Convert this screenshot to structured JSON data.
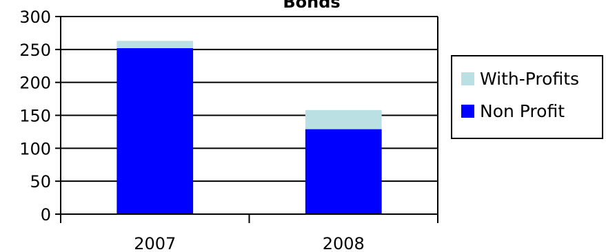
{
  "chart_data": {
    "type": "bar",
    "stacked": true,
    "title": "Bonds",
    "categories": [
      "2007",
      "2008"
    ],
    "series": [
      {
        "name": "Non Profit",
        "values": [
          252,
          129
        ],
        "color": "#0000ff"
      },
      {
        "name": "With-Profits",
        "values": [
          11,
          29
        ],
        "color": "#bbe0e3"
      }
    ],
    "ylim": [
      0,
      300
    ],
    "yticks": [
      0,
      50,
      100,
      150,
      200,
      250,
      300
    ],
    "grid": true,
    "legend_position": "right",
    "legend_order": [
      "With-Profits",
      "Non Profit"
    ]
  }
}
